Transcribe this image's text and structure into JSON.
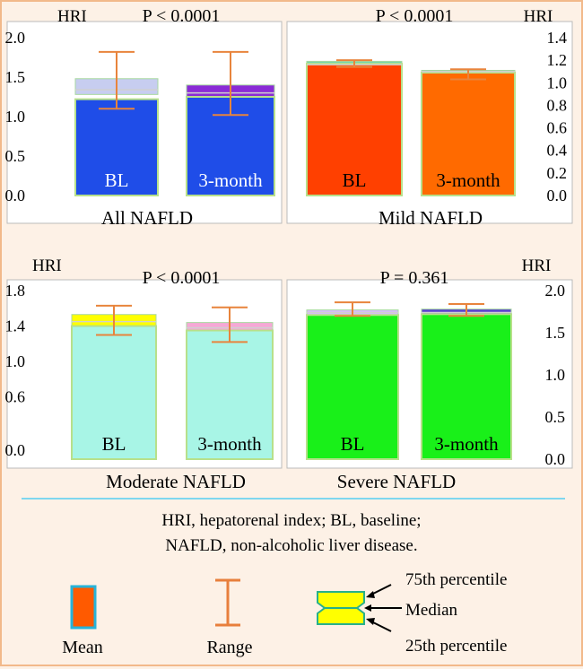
{
  "figure": {
    "caption_line1": "HRI, hepatorenal index; BL, baseline;",
    "caption_line2": "NAFLD, non-alcoholic liver disease.",
    "legend": {
      "mean_label": "Mean",
      "range_label": "Range",
      "p75_label": "75th percentile",
      "median_label": "Median",
      "p25_label": "25th percentile"
    }
  },
  "chart_data": [
    {
      "type": "bar",
      "title": "All NAFLD",
      "p_value": "P < 0.0001",
      "ylabel": "HRI",
      "ylim": [
        0,
        2.0
      ],
      "yticks": [
        "0.0",
        "0.5",
        "1.0",
        "1.5",
        "2.0"
      ],
      "categories": [
        "BL",
        "3-month"
      ],
      "mean": [
        1.22,
        1.25
      ],
      "median": [
        1.34,
        1.3
      ],
      "p25": [
        1.28,
        1.15
      ],
      "p75": [
        1.48,
        1.4
      ],
      "range_min": [
        1.1,
        1.02
      ],
      "range_max": [
        1.82,
        1.82
      ],
      "bar_color": "#1f4de8",
      "iqr_colors": [
        "#c7cdf0",
        "#8a2bd6"
      ]
    },
    {
      "type": "bar",
      "title": "Mild NAFLD",
      "p_value": "P < 0.0001",
      "ylabel": "HRI",
      "ylim": [
        0,
        1.4
      ],
      "yticks": [
        "0.0",
        "0.2",
        "0.4",
        "0.6",
        "0.8",
        "1.0",
        "1.2",
        "1.4"
      ],
      "categories": [
        "BL",
        "3-month"
      ],
      "mean": [
        1.17,
        1.09
      ],
      "median": [
        1.16,
        1.1
      ],
      "p25": [
        1.14,
        1.09
      ],
      "p75": [
        1.19,
        1.11
      ],
      "range_min": [
        1.14,
        1.03
      ],
      "range_max": [
        1.2,
        1.12
      ],
      "bar_colors": [
        "#ff4000",
        "#ff6a00"
      ],
      "iqr_colors": [
        "#6fd6b0",
        "#2a3fbf"
      ]
    },
    {
      "type": "bar",
      "title": "Moderate NAFLD",
      "p_value": "P < 0.0001",
      "ylabel": "HRI",
      "ylim": [
        -0.1,
        1.8
      ],
      "yticks": [
        "0.0",
        "0.6",
        "1.0",
        "1.4",
        "1.8"
      ],
      "categories": [
        "BL",
        "3-month"
      ],
      "mean": [
        1.4,
        1.35
      ],
      "median": [
        1.45,
        1.38
      ],
      "p25": [
        1.39,
        1.31
      ],
      "p75": [
        1.53,
        1.44
      ],
      "range_min": [
        1.3,
        1.22
      ],
      "range_max": [
        1.63,
        1.61
      ],
      "bar_color": "#a8f5e6",
      "iqr_colors": [
        "#ffff00",
        "#f5a8d6"
      ]
    },
    {
      "type": "bar",
      "title": "Severe NAFLD",
      "p_value": "P = 0.361",
      "ylabel": "HRI",
      "ylim": [
        0,
        2.0
      ],
      "yticks": [
        "0.0",
        "0.5",
        "1.0",
        "1.5",
        "2.0"
      ],
      "categories": [
        "BL",
        "3-month"
      ],
      "mean": [
        1.71,
        1.72
      ],
      "median": [
        1.74,
        1.74
      ],
      "p25": [
        1.71,
        1.71
      ],
      "p75": [
        1.77,
        1.78
      ],
      "range_min": [
        1.7,
        1.7
      ],
      "range_max": [
        1.86,
        1.84
      ],
      "bar_color": "#19f019",
      "iqr_colors": [
        "#d8b8ff",
        "#5a40d0"
      ]
    }
  ]
}
